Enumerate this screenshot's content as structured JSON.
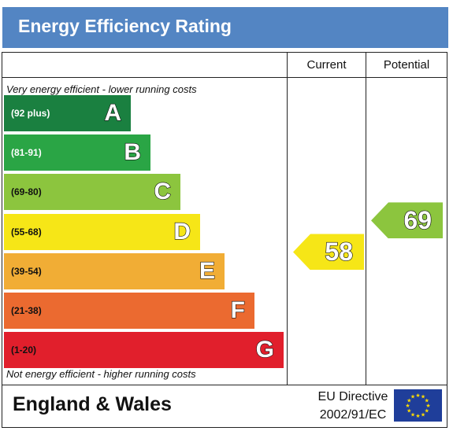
{
  "header": {
    "title": "Energy Efficiency Rating",
    "color": "#5385c3"
  },
  "columns": {
    "current": "Current",
    "potential": "Potential"
  },
  "notes": {
    "top": "Very energy efficient - lower running costs",
    "bottom": "Not energy efficient - higher running costs"
  },
  "chart_data": {
    "type": "bar",
    "title": "Energy Efficiency Rating",
    "categories": [
      "A",
      "B",
      "C",
      "D",
      "E",
      "F",
      "G"
    ],
    "bands": [
      {
        "letter": "A",
        "range": "(92 plus)",
        "min": 92,
        "max": 100,
        "color": "#1a8040",
        "range_color": "#ffffff"
      },
      {
        "letter": "B",
        "range": "(81-91)",
        "min": 81,
        "max": 91,
        "color": "#2aa545",
        "range_color": "#ffffff"
      },
      {
        "letter": "C",
        "range": "(69-80)",
        "min": 69,
        "max": 80,
        "color": "#8cc53e",
        "range_color": "#111111"
      },
      {
        "letter": "D",
        "range": "(55-68)",
        "min": 55,
        "max": 68,
        "color": "#f6e617",
        "range_color": "#111111"
      },
      {
        "letter": "E",
        "range": "(39-54)",
        "min": 39,
        "max": 54,
        "color": "#f1ad35",
        "range_color": "#111111"
      },
      {
        "letter": "F",
        "range": "(21-38)",
        "min": 21,
        "max": 38,
        "color": "#eb6a30",
        "range_color": "#111111"
      },
      {
        "letter": "G",
        "range": "(1-20)",
        "min": 1,
        "max": 20,
        "color": "#e11f2c",
        "range_color": "#111111"
      }
    ],
    "current": {
      "value": 58,
      "label": "58",
      "band": "D",
      "color": "#f6e617"
    },
    "potential": {
      "value": 69,
      "label": "69",
      "band": "C",
      "color": "#8cc53e"
    }
  },
  "footer": {
    "region": "England & Wales",
    "directive_line1": "EU Directive",
    "directive_line2": "2002/91/EC",
    "flag_color": "#1f3e9a",
    "star_color": "#ffdd00"
  }
}
